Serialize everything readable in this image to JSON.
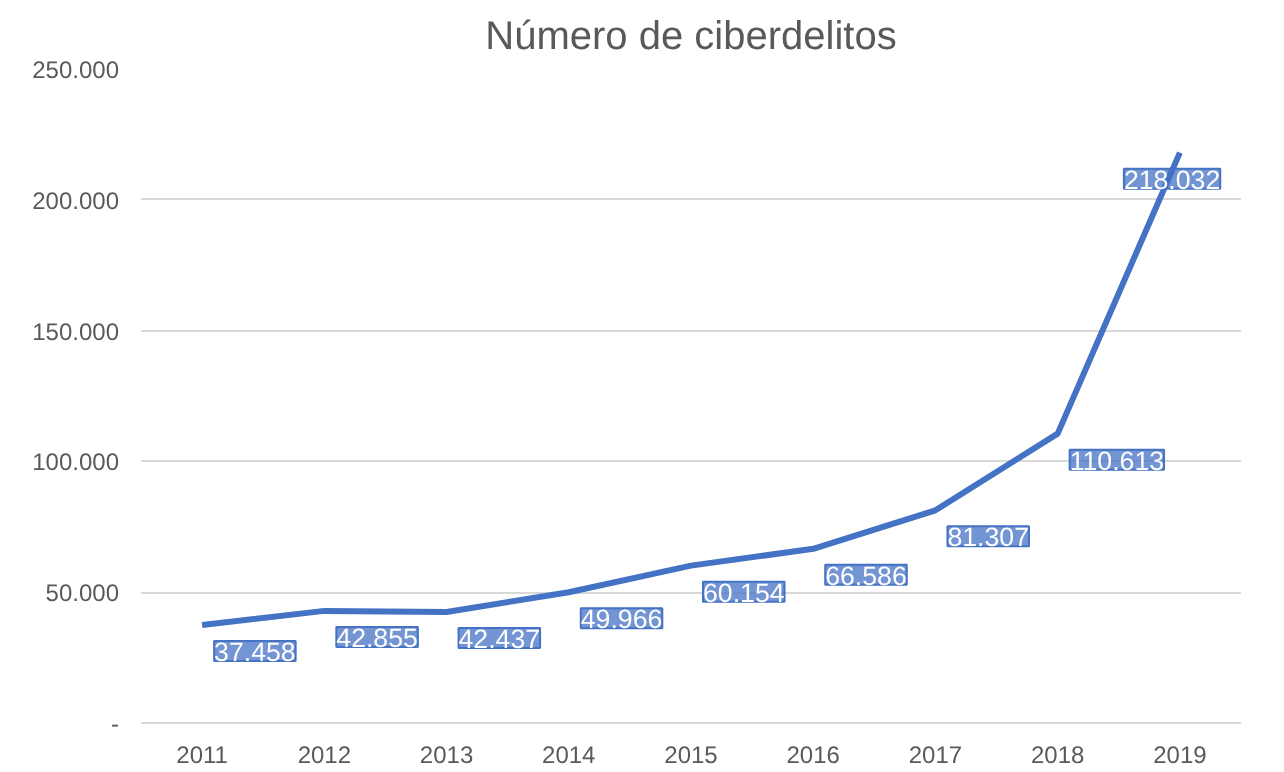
{
  "chart_data": {
    "type": "line",
    "title": "Número de ciberdelitos",
    "categories": [
      "2011",
      "2012",
      "2013",
      "2014",
      "2015",
      "2016",
      "2017",
      "2018",
      "2019"
    ],
    "series": [
      {
        "color": "#4472c4",
        "values": [
          37458,
          42855,
          42437,
          49966,
          60154,
          66586,
          81307,
          110613,
          218032
        ],
        "value_labels": [
          "37.458",
          "42.855",
          "42.437",
          "49.966",
          "60.154",
          "66.586",
          "81.307",
          "110.613",
          "218.032"
        ]
      }
    ],
    "ylim": [
      0,
      250000
    ],
    "yticks": [
      {
        "value": 0,
        "label": "-"
      },
      {
        "value": 50000,
        "label": "50.000"
      },
      {
        "value": 100000,
        "label": "100.000"
      },
      {
        "value": 150000,
        "label": "150.000"
      },
      {
        "value": 200000,
        "label": "200.000"
      },
      {
        "value": 250000,
        "label": "250.000"
      }
    ],
    "grid": "y",
    "marker": "none",
    "line_style": "solid"
  }
}
